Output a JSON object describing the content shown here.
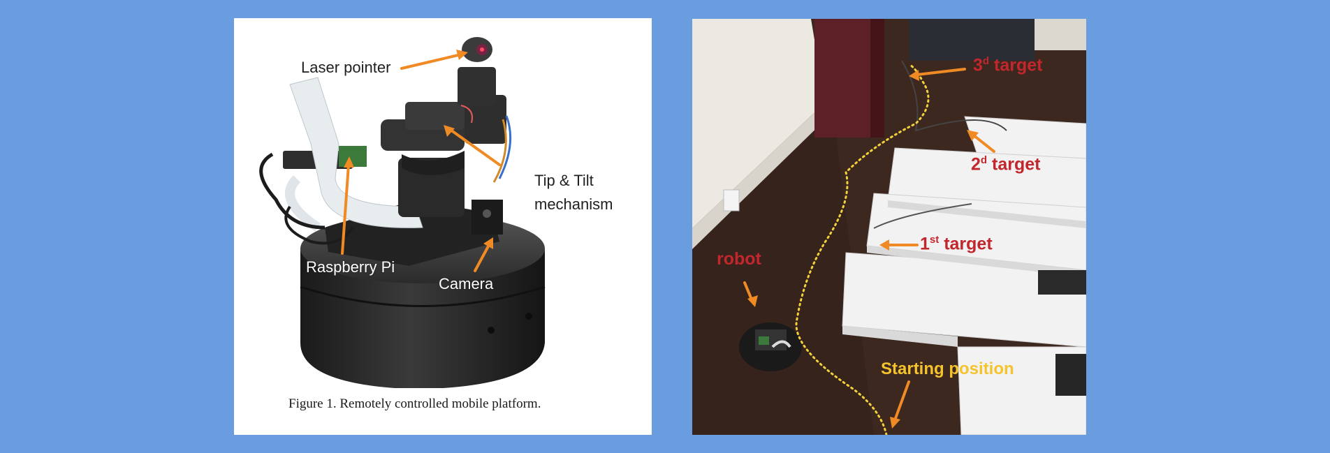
{
  "figure1": {
    "labels": {
      "laser_pointer": "Laser pointer",
      "tip_tilt_line1": "Tip & Tilt",
      "tip_tilt_line2": "mechanism",
      "raspberry_pi": "Raspberry Pi",
      "camera": "Camera"
    },
    "caption": "Figure 1.    Remotely controlled mobile platform."
  },
  "figure2": {
    "labels": {
      "third_target_num": "3",
      "third_target_sup": "d",
      "third_target_word": " target",
      "second_target_num": "2",
      "second_target_sup": "d",
      "second_target_word": " target",
      "first_target_num": "1",
      "first_target_sup": "st",
      "first_target_word": " target",
      "robot": "robot",
      "starting_position": "Starting position"
    }
  },
  "colors": {
    "background": "#6a9de0",
    "arrow_orange": "#f08a24",
    "label_red": "#c2272d",
    "label_yellow": "#f5c32c"
  }
}
